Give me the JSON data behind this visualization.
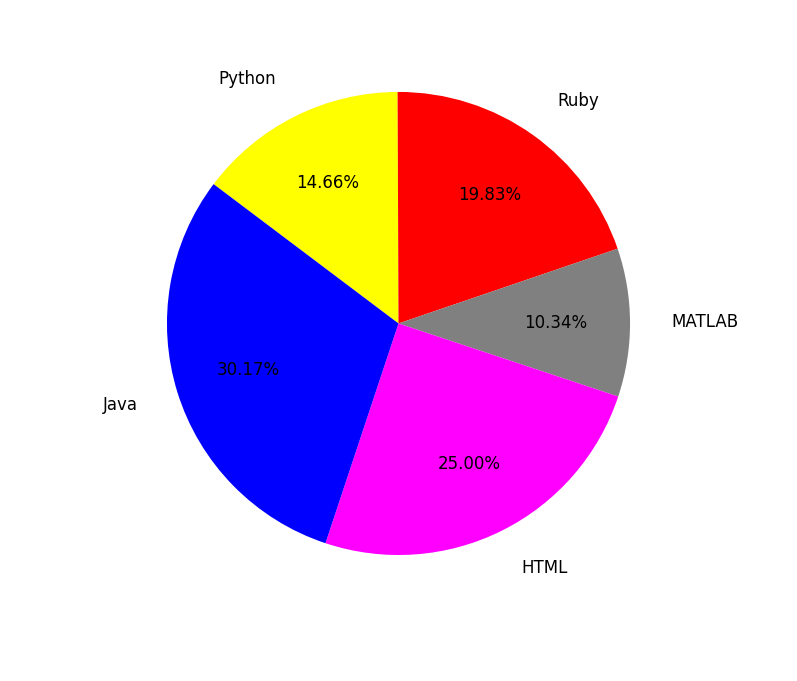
{
  "labels": [
    "Python",
    "Ruby",
    "MATLAB",
    "HTML",
    "Java"
  ],
  "values": [
    14.66,
    19.83,
    10.34,
    25.0,
    30.17
  ],
  "colors": [
    "#ffff00",
    "#ff0000",
    "#808080",
    "#ff00ff",
    "#0000ff"
  ],
  "startangle": 143,
  "autopct_fontsize": 12,
  "label_fontsize": 12,
  "label_distance": 1.18,
  "pct_distance": 0.68,
  "figure_facecolor": "#ffffff",
  "axes_facecolor": "#ffffff",
  "figsize": [
    7.97,
    6.81
  ],
  "dpi": 100
}
